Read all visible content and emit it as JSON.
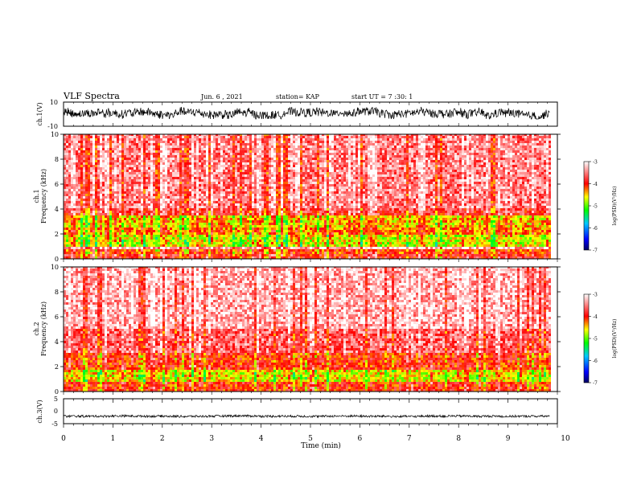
{
  "header": {
    "title": "VLF Spectra",
    "date": "Jun. 6 , 2021",
    "station": "station= KAP",
    "start": "start UT = 7 :30: 1"
  },
  "chart_data": [
    {
      "type": "line",
      "panel": "ch1-waveform",
      "ylabel": "ch.1(V)",
      "yticks": [
        "10",
        "-10"
      ],
      "ylim": [
        -10,
        10
      ],
      "xlim": [
        0,
        10
      ],
      "series": [
        {
          "values_range": [
            -4,
            6
          ],
          "mean": 1
        }
      ],
      "line_color": "#000000"
    },
    {
      "type": "heatmap",
      "panel": "ch1-spectrogram",
      "ylabel": "ch.1\nFrequency (kHz)",
      "ylabel_lines": [
        "ch.1",
        "Frequency (kHz)"
      ],
      "yticks": [
        "0",
        "2",
        "4",
        "6",
        "8",
        "10"
      ],
      "ylim": [
        0,
        10
      ],
      "xlim": [
        0,
        9.85
      ],
      "bands": [
        {
          "from": 0.0,
          "to": 0.3,
          "level": -3.9
        },
        {
          "from": 0.3,
          "to": 0.8,
          "level": -4.1
        },
        {
          "from": 0.8,
          "to": 1.0,
          "level": -3.3
        },
        {
          "from": 1.0,
          "to": 2.0,
          "level": -4.7
        },
        {
          "from": 2.0,
          "to": 2.5,
          "level": -4.3
        },
        {
          "from": 2.5,
          "to": 3.5,
          "level": -4.5
        },
        {
          "from": 3.5,
          "to": 4.0,
          "level": -3.8
        },
        {
          "from": 4.0,
          "to": 10.0,
          "level": -3.5
        }
      ]
    },
    {
      "type": "heatmap",
      "panel": "ch2-spectrogram",
      "ylabel": "ch.2\nFrequency (kHz)",
      "ylabel_lines": [
        "ch.2",
        "Frequency (kHz)"
      ],
      "yticks": [
        "0",
        "2",
        "4",
        "6",
        "8",
        "10"
      ],
      "ylim": [
        0,
        10
      ],
      "xlim": [
        0,
        9.85
      ],
      "bands": [
        {
          "from": 0.0,
          "to": 0.8,
          "level": -4.0
        },
        {
          "from": 0.8,
          "to": 1.8,
          "level": -4.6
        },
        {
          "from": 1.8,
          "to": 3.0,
          "level": -4.0
        },
        {
          "from": 3.0,
          "to": 5.0,
          "level": -3.6
        },
        {
          "from": 5.0,
          "to": 10.0,
          "level": -3.3
        }
      ]
    },
    {
      "type": "line",
      "panel": "ch3-waveform",
      "ylabel": "ch.3(V)",
      "yticks": [
        "5",
        "0",
        "-5"
      ],
      "ylim": [
        -5,
        5
      ],
      "xlim": [
        0,
        10
      ],
      "series": [
        {
          "values_range": [
            -2.5,
            -1.5
          ],
          "mean": -2
        }
      ],
      "xlabel": "Time (min)",
      "xticks": [
        "0",
        "1",
        "2",
        "3",
        "4",
        "5",
        "6",
        "7",
        "8",
        "9",
        "10"
      ]
    }
  ],
  "colorbar": {
    "label": "log(PSD)(V²/Hz)",
    "ticks": [
      "-3",
      "-4",
      "-5",
      "-6",
      "-7"
    ],
    "range": [
      -7,
      -3
    ],
    "stops": [
      "#000080",
      "#0000ff",
      "#00ffff",
      "#00ff00",
      "#ffff00",
      "#ff0000",
      "#ffffff"
    ]
  }
}
